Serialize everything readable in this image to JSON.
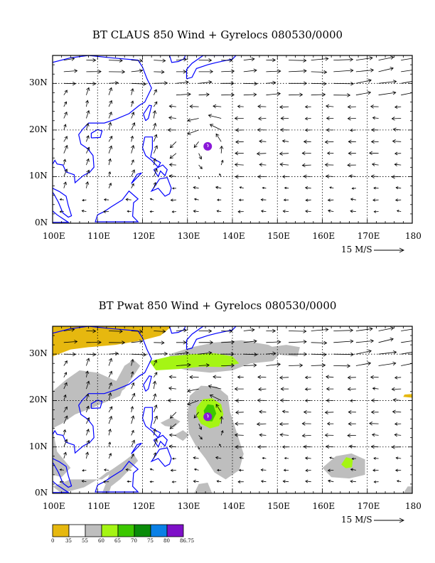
{
  "panels": [
    {
      "title": "BT CLAUS 850 Wind + Gyrelocs 080530/0000",
      "filled_field": "none"
    },
    {
      "title": "BT Pwat 850 Wind + Gyrelocs 080530/0000",
      "filled_field": "precipitable water"
    }
  ],
  "axes": {
    "lon_ticks": [
      "100E",
      "110E",
      "120E",
      "130E",
      "140E",
      "150E",
      "160E",
      "170E",
      "180"
    ],
    "lat_ticks": [
      "0N",
      "10N",
      "20N",
      "30N"
    ],
    "lon_range": [
      100,
      180
    ],
    "lat_range": [
      0,
      36
    ],
    "grid": "dotted every 10 degrees"
  },
  "reference_vector": {
    "label": "15 M/S",
    "value": 15
  },
  "colorbar": {
    "levels": [
      "0",
      "35",
      "55",
      "60",
      "65",
      "70",
      "75",
      "80",
      "86.75"
    ],
    "colors": [
      "#e6b80f",
      "#ffffff",
      "#bebebe",
      "#a5f514",
      "#3cc800",
      "#0a8c0a",
      "#0a80e6",
      "#7e10c8"
    ]
  },
  "gyre_location": {
    "lon": 134.5,
    "lat": 16.5,
    "color": "#8a18d8"
  },
  "colors": {
    "coast": "#0000ff",
    "grid": "#000000"
  }
}
